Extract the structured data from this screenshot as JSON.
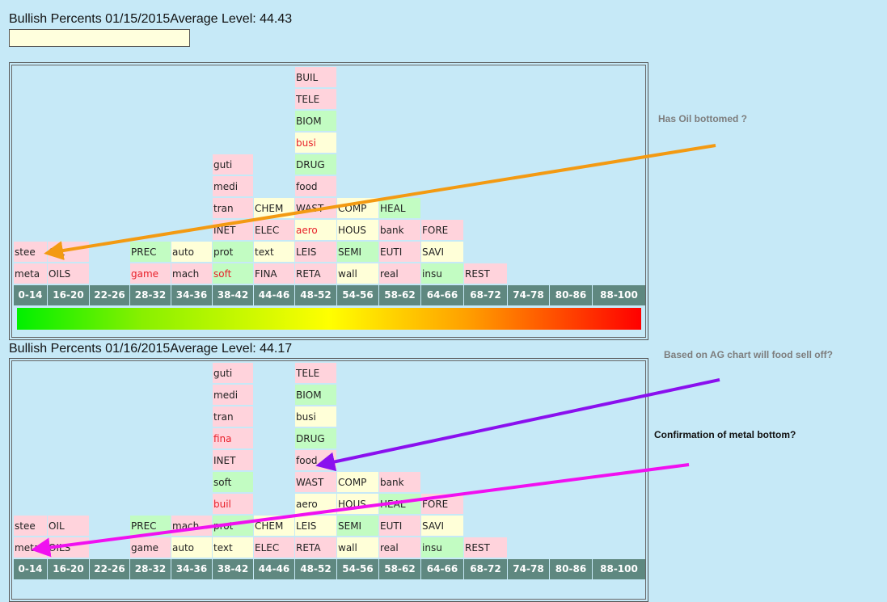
{
  "bins": [
    "0-14",
    "16-20",
    "22-26",
    "28-32",
    "34-36",
    "38-42",
    "44-46",
    "48-52",
    "54-56",
    "58-62",
    "64-66",
    "68-72",
    "74-78",
    "80-86",
    "88-100"
  ],
  "colors": {
    "pink": "#ffd3dc",
    "green": "#c2fcc2",
    "yellow": "#ffffd8",
    "background": "#c6e9f7",
    "header": "#5f8880"
  },
  "charts": [
    {
      "title": "Bullish Percents 01/15/2015Average Level: 44.43",
      "input_value": "",
      "columns": [
        [
          {
            "t": "meta",
            "c": "p"
          },
          {
            "t": "stee",
            "c": "p"
          }
        ],
        [
          {
            "t": "OILS",
            "c": "p"
          },
          {
            "t": "OIL",
            "c": "p"
          }
        ],
        [],
        [
          {
            "t": "game",
            "c": "p",
            "red": true
          },
          {
            "t": "PREC",
            "c": "g"
          }
        ],
        [
          {
            "t": "mach",
            "c": "p"
          },
          {
            "t": "auto",
            "c": "y"
          }
        ],
        [
          {
            "t": "soft",
            "c": "g",
            "red": true
          },
          {
            "t": "prot",
            "c": "g"
          },
          {
            "t": "INET",
            "c": "p"
          },
          {
            "t": "tran",
            "c": "p"
          },
          {
            "t": "medi",
            "c": "p"
          },
          {
            "t": "guti",
            "c": "p"
          }
        ],
        [
          {
            "t": "FINA",
            "c": "p"
          },
          {
            "t": "text",
            "c": "y"
          },
          {
            "t": "ELEC",
            "c": "p"
          },
          {
            "t": "CHEM",
            "c": "y"
          }
        ],
        [
          {
            "t": "RETA",
            "c": "p"
          },
          {
            "t": "LEIS",
            "c": "p"
          },
          {
            "t": "aero",
            "c": "y",
            "red": true
          },
          {
            "t": "WAST",
            "c": "p"
          },
          {
            "t": "food",
            "c": "p"
          },
          {
            "t": "DRUG",
            "c": "g"
          },
          {
            "t": "busi",
            "c": "y",
            "red": true
          },
          {
            "t": "BIOM",
            "c": "g"
          },
          {
            "t": "TELE",
            "c": "p"
          },
          {
            "t": "BUIL",
            "c": "p"
          }
        ],
        [
          {
            "t": "wall",
            "c": "y"
          },
          {
            "t": "SEMI",
            "c": "g"
          },
          {
            "t": "HOUS",
            "c": "y"
          },
          {
            "t": "COMP",
            "c": "y"
          }
        ],
        [
          {
            "t": "real",
            "c": "p"
          },
          {
            "t": "EUTI",
            "c": "p"
          },
          {
            "t": "bank",
            "c": "p"
          },
          {
            "t": "HEAL",
            "c": "g"
          }
        ],
        [
          {
            "t": "insu",
            "c": "g"
          },
          {
            "t": "SAVI",
            "c": "y"
          },
          {
            "t": "FORE",
            "c": "p"
          }
        ],
        [
          {
            "t": "REST",
            "c": "p"
          }
        ],
        [],
        [],
        []
      ]
    },
    {
      "title": "Bullish Percents 01/16/2015Average Level: 44.17",
      "columns": [
        [
          {
            "t": "meta",
            "c": "p"
          },
          {
            "t": "stee",
            "c": "p"
          }
        ],
        [
          {
            "t": "OILS",
            "c": "p"
          },
          {
            "t": "OIL",
            "c": "p"
          }
        ],
        [],
        [
          {
            "t": "game",
            "c": "p"
          },
          {
            "t": "PREC",
            "c": "g"
          }
        ],
        [
          {
            "t": "auto",
            "c": "y"
          },
          {
            "t": "mach",
            "c": "p"
          }
        ],
        [
          {
            "t": "text",
            "c": "y"
          },
          {
            "t": "prot",
            "c": "g"
          },
          {
            "t": "buil",
            "c": "p",
            "red": true
          },
          {
            "t": "soft",
            "c": "g"
          },
          {
            "t": "INET",
            "c": "p"
          },
          {
            "t": "fina",
            "c": "p",
            "red": true
          },
          {
            "t": "tran",
            "c": "p"
          },
          {
            "t": "medi",
            "c": "p"
          },
          {
            "t": "guti",
            "c": "p"
          }
        ],
        [
          {
            "t": "ELEC",
            "c": "p"
          },
          {
            "t": "CHEM",
            "c": "y"
          }
        ],
        [
          {
            "t": "RETA",
            "c": "p"
          },
          {
            "t": "LEIS",
            "c": "y"
          },
          {
            "t": "aero",
            "c": "y"
          },
          {
            "t": "WAST",
            "c": "p"
          },
          {
            "t": "food",
            "c": "p"
          },
          {
            "t": "DRUG",
            "c": "g"
          },
          {
            "t": "busi",
            "c": "y"
          },
          {
            "t": "BIOM",
            "c": "g"
          },
          {
            "t": "TELE",
            "c": "p"
          }
        ],
        [
          {
            "t": "wall",
            "c": "y"
          },
          {
            "t": "SEMI",
            "c": "g"
          },
          {
            "t": "HOUS",
            "c": "y"
          },
          {
            "t": "COMP",
            "c": "y"
          }
        ],
        [
          {
            "t": "real",
            "c": "p"
          },
          {
            "t": "EUTI",
            "c": "p"
          },
          {
            "t": "HEAL",
            "c": "g"
          },
          {
            "t": "bank",
            "c": "p"
          }
        ],
        [
          {
            "t": "insu",
            "c": "g"
          },
          {
            "t": "SAVI",
            "c": "y"
          },
          {
            "t": "FORE",
            "c": "p"
          }
        ],
        [
          {
            "t": "REST",
            "c": "p"
          }
        ],
        [],
        [],
        []
      ]
    }
  ],
  "annotations": {
    "oil": "Has Oil bottomed ?",
    "food": "Based on AG chart will food sell off?",
    "metal": "Confirmation of metal bottom?"
  },
  "arrow_colors": {
    "oil": "#f39a12",
    "food": "#8a10ee",
    "metal": "#f010f0"
  }
}
